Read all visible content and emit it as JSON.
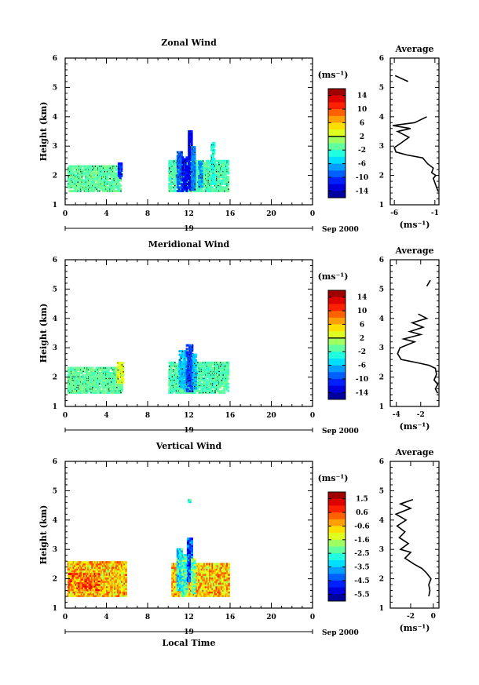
{
  "chart_data": [
    {
      "type": "heatmap",
      "title": "Zonal Wind",
      "ylabel": "Height (km)",
      "xticks": [
        "0",
        "4",
        "8",
        "12",
        "16",
        "20",
        "0"
      ],
      "yticks": [
        "1",
        "2",
        "3",
        "4",
        "5",
        "6"
      ],
      "xlim": [
        0,
        24
      ],
      "ylim": [
        1,
        6
      ],
      "date_axis": {
        "day": "19",
        "label": "Sep 2000"
      },
      "colorbar": {
        "unit": "(ms⁻¹)",
        "ticks": [
          "14",
          "10",
          "6",
          "2",
          "-2",
          "-6",
          "-10",
          "-14"
        ],
        "min": -16,
        "max": 16,
        "zero_line": 2
      },
      "fill_level": 0.25,
      "blocks": [
        {
          "x0": 0.2,
          "x1": 5.3,
          "y0": 1.45,
          "y1": 2.3,
          "v": -1.0
        },
        {
          "x0": 5.1,
          "x1": 5.4,
          "y0": 1.9,
          "y1": 2.4,
          "v": -11
        },
        {
          "x0": 10.0,
          "x1": 15.8,
          "y0": 1.45,
          "y1": 2.5,
          "v": -1.5
        },
        {
          "x0": 10.8,
          "x1": 11.3,
          "y0": 1.45,
          "y1": 2.8,
          "v": -9
        },
        {
          "x0": 11.3,
          "x1": 11.8,
          "y0": 1.45,
          "y1": 2.6,
          "v": -12
        },
        {
          "x0": 11.9,
          "x1": 12.2,
          "y0": 1.5,
          "y1": 3.5,
          "v": -12
        },
        {
          "x0": 12.2,
          "x1": 12.5,
          "y0": 1.5,
          "y1": 3.0,
          "v": -8
        },
        {
          "x0": 12.9,
          "x1": 13.2,
          "y0": 1.6,
          "y1": 2.5,
          "v": -7
        },
        {
          "x0": 14.1,
          "x1": 14.4,
          "y0": 1.7,
          "y1": 3.1,
          "v": -3
        }
      ],
      "average_profile": {
        "title": "Average",
        "xlabel": "(ms⁻¹)",
        "xticks": [
          "-6",
          "-1"
        ],
        "xlim": [
          -6.5,
          -0.5
        ],
        "ylim": [
          1,
          6
        ],
        "segments": [
          [
            [
              -0.6,
              1.45
            ],
            [
              -0.8,
              1.6
            ],
            [
              -1.0,
              1.75
            ],
            [
              -1.2,
              1.9
            ],
            [
              -0.9,
              2.0
            ],
            [
              -1.4,
              2.1
            ],
            [
              -1.2,
              2.25
            ],
            [
              -1.9,
              2.4
            ],
            [
              -2.5,
              2.6
            ],
            [
              -4.5,
              2.7
            ],
            [
              -5.8,
              2.8
            ],
            [
              -6.0,
              2.95
            ],
            [
              -5.2,
              3.1
            ],
            [
              -4.2,
              3.3
            ],
            [
              -5.6,
              3.5
            ],
            [
              -4.0,
              3.6
            ],
            [
              -6.2,
              3.7
            ],
            [
              -3.5,
              3.8
            ],
            [
              -2.0,
              4.0
            ]
          ],
          [
            [
              -5.9,
              5.4
            ],
            [
              -4.3,
              5.2
            ]
          ]
        ]
      }
    },
    {
      "type": "heatmap",
      "title": "Meridional Wind",
      "ylabel": "Height (km)",
      "xticks": [
        "0",
        "4",
        "8",
        "12",
        "16",
        "20",
        "0"
      ],
      "yticks": [
        "1",
        "2",
        "3",
        "4",
        "5",
        "6"
      ],
      "xlim": [
        0,
        24
      ],
      "ylim": [
        1,
        6
      ],
      "date_axis": {
        "day": "19",
        "label": "Sep 2000"
      },
      "colorbar": {
        "unit": "(ms⁻¹)",
        "ticks": [
          "14",
          "10",
          "6",
          "2",
          "-2",
          "-6",
          "-10",
          "-14"
        ],
        "min": -16,
        "max": 16,
        "zero_line": 2
      },
      "fill_level": 0.25,
      "blocks": [
        {
          "x0": 0.2,
          "x1": 5.5,
          "y0": 1.45,
          "y1": 2.3,
          "v": -1.0
        },
        {
          "x0": 5.0,
          "x1": 5.6,
          "y0": 1.8,
          "y1": 2.5,
          "v": 3
        },
        {
          "x0": 10.0,
          "x1": 15.8,
          "y0": 1.45,
          "y1": 2.5,
          "v": -1.5
        },
        {
          "x0": 11.0,
          "x1": 11.7,
          "y0": 1.6,
          "y1": 2.9,
          "v": -6
        },
        {
          "x0": 11.7,
          "x1": 12.3,
          "y0": 1.5,
          "y1": 3.1,
          "v": -10
        },
        {
          "x0": 12.3,
          "x1": 12.6,
          "y0": 1.6,
          "y1": 2.8,
          "v": -6
        }
      ],
      "average_profile": {
        "title": "Average",
        "xlabel": "(ms⁻¹)",
        "xticks": [
          "-4",
          "-2"
        ],
        "xlim": [
          -4.5,
          -0.5
        ],
        "ylim": [
          1,
          6
        ],
        "segments": [
          [
            [
              -0.6,
              1.45
            ],
            [
              -0.8,
              1.6
            ],
            [
              -0.6,
              1.75
            ],
            [
              -0.9,
              1.9
            ],
            [
              -0.7,
              2.1
            ],
            [
              -0.8,
              2.3
            ],
            [
              -1.3,
              2.4
            ],
            [
              -2.4,
              2.5
            ],
            [
              -3.6,
              2.6
            ],
            [
              -3.9,
              2.8
            ],
            [
              -3.7,
              3.0
            ],
            [
              -2.5,
              3.2
            ],
            [
              -3.4,
              3.3
            ],
            [
              -2.0,
              3.45
            ],
            [
              -2.9,
              3.55
            ],
            [
              -1.8,
              3.7
            ],
            [
              -2.7,
              3.85
            ],
            [
              -1.5,
              4.0
            ],
            [
              -2.2,
              4.15
            ]
          ],
          [
            [
              -1.5,
              5.1
            ],
            [
              -1.2,
              5.3
            ]
          ]
        ]
      }
    },
    {
      "type": "heatmap",
      "title": "Vertical Wind",
      "ylabel": "Height (km)",
      "xlabel": "Local Time",
      "xticks": [
        "0",
        "4",
        "8",
        "12",
        "16",
        "20",
        "0"
      ],
      "yticks": [
        "1",
        "2",
        "3",
        "4",
        "5",
        "6"
      ],
      "xlim": [
        0,
        24
      ],
      "ylim": [
        1,
        6
      ],
      "date_axis": {
        "day": "19",
        "label": "Sep 2000"
      },
      "colorbar": {
        "unit": "(ms⁻¹)",
        "ticks": [
          "1.5",
          "0.6",
          "-0.6",
          "-1.6",
          "-2.5",
          "-3.5",
          "-4.5",
          "-5.5"
        ],
        "min": -6.1,
        "max": 2.0,
        "zero_line": null
      },
      "fill_level": 1.0,
      "blocks": [
        {
          "x0": 0.2,
          "x1": 5.8,
          "y0": 1.4,
          "y1": 2.6,
          "v": -0.6
        },
        {
          "x0": 0.3,
          "x1": 3.2,
          "y0": 1.6,
          "y1": 2.2,
          "v": 0.0
        },
        {
          "x0": 10.3,
          "x1": 15.8,
          "y0": 1.4,
          "y1": 2.5,
          "v": -0.6
        },
        {
          "x0": 10.8,
          "x1": 11.3,
          "y0": 1.6,
          "y1": 3.0,
          "v": -3
        },
        {
          "x0": 11.3,
          "x1": 11.8,
          "y0": 1.4,
          "y1": 2.8,
          "v": -2.4
        },
        {
          "x0": 11.8,
          "x1": 12.2,
          "y0": 1.9,
          "y1": 3.4,
          "v": -4.6
        },
        {
          "x0": 12.2,
          "x1": 12.5,
          "y0": 1.5,
          "y1": 2.7,
          "v": -2.0
        },
        {
          "x0": 11.9,
          "x1": 12.1,
          "y0": 4.6,
          "y1": 4.7,
          "v": -2.5
        }
      ],
      "average_profile": {
        "title": "Average",
        "xlabel": "(ms⁻¹)",
        "xticks": [
          "-2",
          "0"
        ],
        "xlim": [
          -3.8,
          0.5
        ],
        "ylim": [
          1,
          6
        ],
        "segments": [
          [
            [
              -0.4,
              1.4
            ],
            [
              -0.3,
              1.6
            ],
            [
              -0.4,
              1.8
            ],
            [
              -0.2,
              2.0
            ],
            [
              -0.6,
              2.2
            ],
            [
              -1.0,
              2.35
            ],
            [
              -1.7,
              2.5
            ],
            [
              -2.5,
              2.7
            ],
            [
              -2.0,
              2.9
            ],
            [
              -2.9,
              3.0
            ],
            [
              -2.2,
              3.2
            ],
            [
              -3.0,
              3.4
            ],
            [
              -2.5,
              3.6
            ],
            [
              -3.2,
              3.8
            ],
            [
              -2.4,
              4.0
            ],
            [
              -3.3,
              4.2
            ],
            [
              -2.0,
              4.4
            ],
            [
              -2.9,
              4.55
            ],
            [
              -1.8,
              4.7
            ]
          ]
        ]
      }
    }
  ]
}
